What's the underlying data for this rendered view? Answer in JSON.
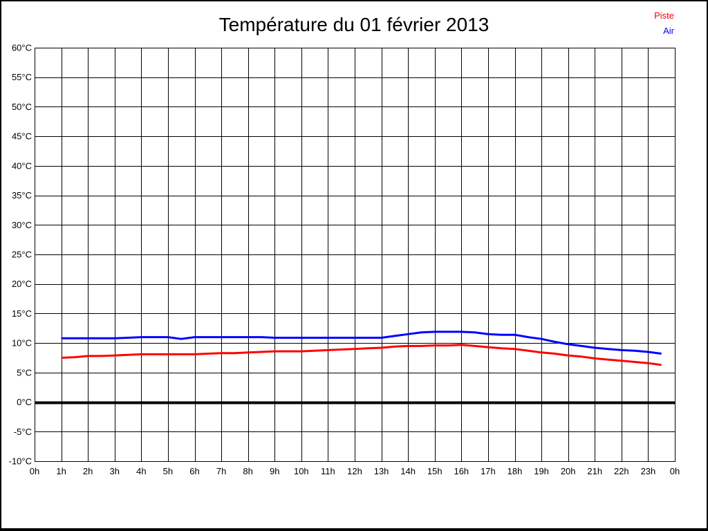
{
  "title": "Température du 01 février 2013",
  "legend": {
    "items": [
      {
        "label": "Piste",
        "color": "#ff0000"
      },
      {
        "label": "Air",
        "color": "#0000ff"
      }
    ],
    "position": "top-right"
  },
  "colors": {
    "grid": "#000000",
    "frame": "#000000",
    "zero_line": "#000000",
    "background": "#ffffff",
    "text": "#000000"
  },
  "chart_data": {
    "type": "line",
    "title": "Température du 01 février 2013",
    "xlabel": "",
    "ylabel": "",
    "xlim": [
      0,
      24
    ],
    "ylim": [
      -10,
      60
    ],
    "grid": true,
    "zero_line_bold": true,
    "legend_position": "top-right",
    "x_tick_labels": [
      "0h",
      "1h",
      "2h",
      "3h",
      "4h",
      "5h",
      "6h",
      "7h",
      "8h",
      "9h",
      "10h",
      "11h",
      "12h",
      "13h",
      "14h",
      "15h",
      "16h",
      "17h",
      "18h",
      "19h",
      "20h",
      "21h",
      "22h",
      "23h",
      "0h"
    ],
    "x_tick_values": [
      0,
      1,
      2,
      3,
      4,
      5,
      6,
      7,
      8,
      9,
      10,
      11,
      12,
      13,
      14,
      15,
      16,
      17,
      18,
      19,
      20,
      21,
      22,
      23,
      24
    ],
    "y_tick_labels": [
      "60°C",
      "55°C",
      "50°C",
      "45°C",
      "40°C",
      "35°C",
      "30°C",
      "25°C",
      "20°C",
      "15°C",
      "10°C",
      "5°C",
      "0°C",
      "-5°C",
      "-10°C"
    ],
    "y_tick_values": [
      60,
      55,
      50,
      45,
      40,
      35,
      30,
      25,
      20,
      15,
      10,
      5,
      0,
      -5,
      -10
    ],
    "x_unit": "hours",
    "y_unit": "°C",
    "series": [
      {
        "name": "Piste",
        "color": "#ff0000",
        "width": 3,
        "x": [
          1,
          1.5,
          2,
          2.5,
          3,
          3.5,
          4,
          4.5,
          5,
          5.5,
          6,
          6.5,
          7,
          7.5,
          8,
          8.5,
          9,
          9.5,
          10,
          10.5,
          11,
          11.5,
          12,
          12.5,
          13,
          13.5,
          14,
          14.5,
          15,
          15.5,
          16,
          16.5,
          17,
          17.5,
          18,
          18.5,
          19,
          19.5,
          20,
          20.5,
          21,
          21.5,
          22,
          22.5,
          23,
          23.5
        ],
        "values": [
          7.5,
          7.6,
          7.8,
          7.8,
          7.9,
          8.0,
          8.1,
          8.1,
          8.1,
          8.1,
          8.1,
          8.2,
          8.3,
          8.3,
          8.4,
          8.5,
          8.6,
          8.6,
          8.6,
          8.7,
          8.8,
          8.9,
          9.0,
          9.1,
          9.2,
          9.4,
          9.5,
          9.5,
          9.6,
          9.6,
          9.7,
          9.5,
          9.3,
          9.1,
          9.0,
          8.7,
          8.4,
          8.2,
          7.9,
          7.7,
          7.4,
          7.2,
          7.0,
          6.8,
          6.6,
          6.3
        ]
      },
      {
        "name": "Air",
        "color": "#0000ff",
        "width": 3,
        "x": [
          1,
          1.5,
          2,
          2.5,
          3,
          3.5,
          4,
          4.5,
          5,
          5.5,
          6,
          6.5,
          7,
          7.5,
          8,
          8.5,
          9,
          9.5,
          10,
          10.5,
          11,
          11.5,
          12,
          12.5,
          13,
          13.5,
          14,
          14.5,
          15,
          15.5,
          16,
          16.5,
          17,
          17.5,
          18,
          18.5,
          19,
          19.5,
          20,
          20.5,
          21,
          21.5,
          22,
          22.5,
          23,
          23.5
        ],
        "values": [
          10.8,
          10.8,
          10.8,
          10.8,
          10.8,
          10.9,
          11.0,
          11.0,
          11.0,
          10.7,
          11.0,
          11.0,
          11.0,
          11.0,
          11.0,
          11.0,
          10.9,
          10.9,
          10.9,
          10.9,
          10.9,
          10.9,
          10.9,
          10.9,
          10.9,
          11.2,
          11.5,
          11.8,
          11.9,
          11.9,
          11.9,
          11.8,
          11.5,
          11.4,
          11.4,
          11.0,
          10.7,
          10.2,
          9.8,
          9.5,
          9.2,
          9.0,
          8.8,
          8.7,
          8.5,
          8.2
        ]
      }
    ]
  }
}
